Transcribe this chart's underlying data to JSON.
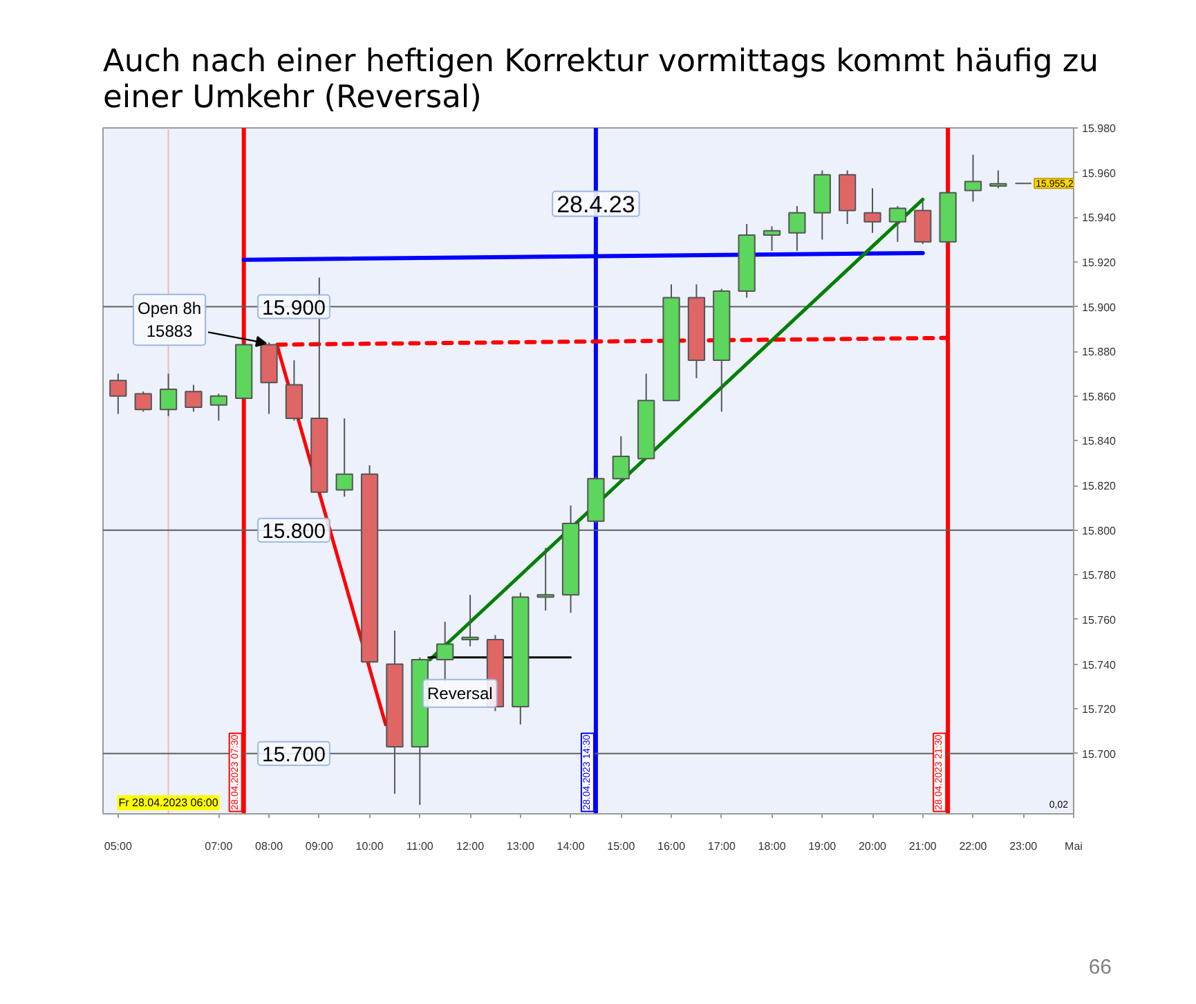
{
  "chart_data": {
    "type": "candlestick",
    "title": "Auch nach einer heftigen Korrektur vormittags kommt häufig zu einer Umkehr (Reversal)",
    "x": [
      5,
      5.5,
      6,
      6.5,
      7,
      7.5,
      8,
      8.5,
      9,
      9.5,
      10,
      10.5,
      11,
      11.5,
      12,
      12.5,
      13,
      13.5,
      14,
      14.5,
      15,
      15.5,
      16,
      16.5,
      17,
      17.5,
      18,
      18.5,
      19,
      19.5,
      20,
      20.5,
      21,
      21.5,
      22,
      22.5,
      23
    ],
    "ohlc": [
      [
        15867,
        15870,
        15852,
        15860
      ],
      [
        15861,
        15862,
        15853,
        15854
      ],
      [
        15854,
        15870,
        15851,
        15863
      ],
      [
        15862,
        15865,
        15853,
        15855
      ],
      [
        15856,
        15861,
        15849,
        15860
      ],
      [
        15859,
        15884,
        15858,
        15883
      ],
      [
        15883,
        15884,
        15852,
        15866
      ],
      [
        15865,
        15876,
        15849,
        15850
      ],
      [
        15850,
        15913,
        15817,
        15817
      ],
      [
        15818,
        15850,
        15815,
        15825
      ],
      [
        15825,
        15829,
        15740,
        15741
      ],
      [
        15740,
        15755,
        15682,
        15703
      ],
      [
        15703,
        15743,
        15677,
        15742
      ],
      [
        15742,
        15759,
        15732,
        15749
      ],
      [
        15751,
        15771,
        15748,
        15752
      ],
      [
        15751,
        15753,
        15719,
        15721
      ],
      [
        15721,
        15772,
        15713,
        15770
      ],
      [
        15770,
        15792,
        15764,
        15771
      ],
      [
        15771,
        15811,
        15763,
        15803
      ],
      [
        15804,
        15824,
        15803,
        15823
      ],
      [
        15823,
        15842,
        15822,
        15833
      ],
      [
        15832,
        15870,
        15832,
        15858
      ],
      [
        15858,
        15910,
        15858,
        15904
      ],
      [
        15904,
        15910,
        15868,
        15876
      ],
      [
        15876,
        15908,
        15853,
        15907
      ],
      [
        15907,
        15937,
        15904,
        15932
      ],
      [
        15932,
        15936,
        15925,
        15934
      ],
      [
        15933,
        15945,
        15925,
        15942
      ],
      [
        15942,
        15961,
        15930,
        15959
      ],
      [
        15959,
        15961,
        15937,
        15943
      ],
      [
        15942,
        15953,
        15933,
        15938
      ],
      [
        15938,
        15945,
        15929,
        15944
      ],
      [
        15943,
        15947,
        15928,
        15929
      ],
      [
        15929,
        15952,
        15928,
        15951
      ],
      [
        15952,
        15968,
        15947,
        15956
      ],
      [
        15954,
        15961,
        15953,
        15955
      ],
      [
        15955.2,
        15955.2,
        15955.2,
        15955.2
      ]
    ],
    "colors": [
      "#e06666",
      "#e06666",
      "#5cd65c",
      "#e06666",
      "#5cd65c",
      "#5cd65c",
      "#e06666",
      "#e06666",
      "#e06666",
      "#5cd65c",
      "#e06666",
      "#e06666",
      "#5cd65c",
      "#5cd65c",
      "#5cd65c",
      "#e06666",
      "#5cd65c",
      "#5cd65c",
      "#5cd65c",
      "#5cd65c",
      "#5cd65c",
      "#5cd65c",
      "#5cd65c",
      "#e06666",
      "#5cd65c",
      "#5cd65c",
      "#5cd65c",
      "#5cd65c",
      "#5cd65c",
      "#e06666",
      "#e06666",
      "#5cd65c",
      "#e06666",
      "#5cd65c",
      "#5cd65c",
      "#5cd65c",
      "#555555"
    ],
    "series": [
      {
        "type": "line",
        "x": [
          7.5,
          21.0
        ],
        "values": [
          15921,
          15924
        ],
        "color": "#0000ff"
      },
      {
        "type": "line",
        "x": [
          8.17,
          21.5
        ],
        "values": [
          15883,
          15886
        ],
        "color": "#ff0000",
        "line_style": "dashed"
      },
      {
        "type": "line",
        "x": [
          8.17,
          10.32
        ],
        "values": [
          15882,
          15713
        ],
        "color": "#ff0000"
      },
      {
        "type": "line",
        "x": [
          11.2,
          21.0
        ],
        "values": [
          15742,
          15948
        ],
        "color": "#008000"
      },
      {
        "type": "line",
        "x": [
          11.17,
          14.0
        ],
        "values": [
          15743,
          15743
        ],
        "color": "#000000"
      }
    ],
    "xlim": [
      4.7,
      24
    ],
    "xticks": [
      {
        "value": 5,
        "label": "05:00"
      },
      {
        "value": 7,
        "label": "07:00"
      },
      {
        "value": 8,
        "label": "08:00"
      },
      {
        "value": 9,
        "label": "09:00"
      },
      {
        "value": 10,
        "label": "10:00"
      },
      {
        "value": 11,
        "label": "11:00"
      },
      {
        "value": 12,
        "label": "12:00"
      },
      {
        "value": 13,
        "label": "13:00"
      },
      {
        "value": 14,
        "label": "14:00"
      },
      {
        "value": 15,
        "label": "15:00"
      },
      {
        "value": 16,
        "label": "16:00"
      },
      {
        "value": 17,
        "label": "17:00"
      },
      {
        "value": 18,
        "label": "18:00"
      },
      {
        "value": 19,
        "label": "19:00"
      },
      {
        "value": 20,
        "label": "20:00"
      },
      {
        "value": 21,
        "label": "21:00"
      },
      {
        "value": 22,
        "label": "22:00"
      },
      {
        "value": 23,
        "label": "23:00"
      },
      {
        "value": 24,
        "label": "Mai"
      }
    ],
    "ylim": [
      15673,
      15980
    ],
    "yticks": [
      {
        "value": 15700,
        "label": "15.700"
      },
      {
        "value": 15720,
        "label": "15.720"
      },
      {
        "value": 15740,
        "label": "15.740"
      },
      {
        "value": 15760,
        "label": "15.760"
      },
      {
        "value": 15780,
        "label": "15.780"
      },
      {
        "value": 15800,
        "label": "15.800"
      },
      {
        "value": 15820,
        "label": "15.820"
      },
      {
        "value": 15840,
        "label": "15.840"
      },
      {
        "value": 15860,
        "label": "15.860"
      },
      {
        "value": 15880,
        "label": "15.880"
      },
      {
        "value": 15900,
        "label": "15.900"
      },
      {
        "value": 15920,
        "label": "15.920"
      },
      {
        "value": 15940,
        "label": "15.940"
      },
      {
        "value": 15960,
        "label": "15.960"
      },
      {
        "value": 15980,
        "label": "15.980"
      }
    ],
    "grid": false,
    "ref_lines": [
      {
        "axis": "x",
        "value": 6.0,
        "label": "Fr 28.04.2023 06:00",
        "color": "#f4b8b8"
      },
      {
        "axis": "x",
        "value": 7.5,
        "label": "28.04.2023 07:30",
        "color": "#ff0000"
      },
      {
        "axis": "x",
        "value": 14.5,
        "label": "28.04.2023 14:30",
        "color": "#0000ff"
      },
      {
        "axis": "x",
        "value": 21.5,
        "label": "28.04.2023 21:30",
        "color": "#ff0000"
      },
      {
        "axis": "y",
        "value": 15900,
        "label": "15.900",
        "color": "#606060"
      },
      {
        "axis": "y",
        "value": 15800,
        "label": "15.800",
        "color": "#606060"
      },
      {
        "axis": "y",
        "value": 15700,
        "label": "15.700",
        "color": "#606060"
      }
    ],
    "annotations": [
      {
        "text": "Open 8h\n15883",
        "x": 8.0,
        "y": 15883
      },
      {
        "text": "Reversal",
        "x": 11.0,
        "y": 15743
      },
      {
        "text": "28.4.23",
        "x": 14.5,
        "y": 15946
      },
      {
        "text": "15.955,2",
        "x": 23.0,
        "y": 15955.2
      },
      "0,02",
      "66"
    ]
  }
}
